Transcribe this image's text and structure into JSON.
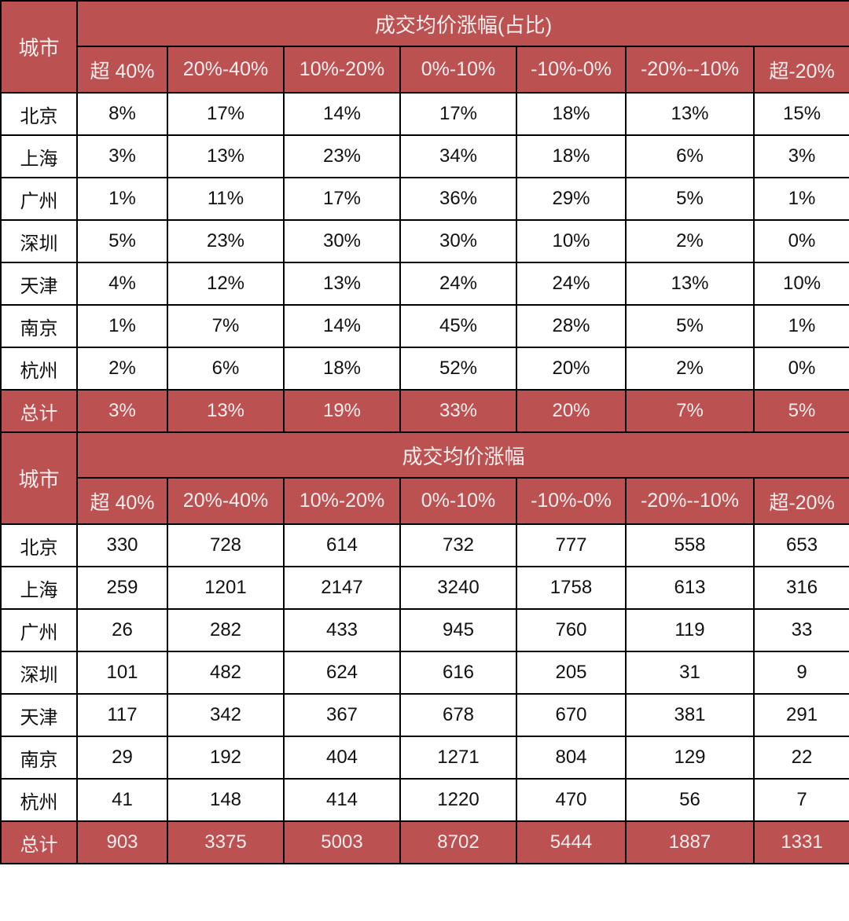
{
  "styles": {
    "header_bg": "#BC5152",
    "header_text": "#F9EDED",
    "body_text": "#111111",
    "border": "#000000"
  },
  "chart_data": [
    {
      "type": "table",
      "title": "成交均价涨幅(占比)",
      "corner_header": "城市",
      "columns": [
        "超 40%",
        "20%-40%",
        "10%-20%",
        "0%-10%",
        "-10%-0%",
        "-20%--10%",
        "超-20%"
      ],
      "rows": [
        {
          "label": "北京",
          "values": [
            "8%",
            "17%",
            "14%",
            "17%",
            "18%",
            "13%",
            "15%"
          ]
        },
        {
          "label": "上海",
          "values": [
            "3%",
            "13%",
            "23%",
            "34%",
            "18%",
            "6%",
            "3%"
          ]
        },
        {
          "label": "广州",
          "values": [
            "1%",
            "11%",
            "17%",
            "36%",
            "29%",
            "5%",
            "1%"
          ]
        },
        {
          "label": "深圳",
          "values": [
            "5%",
            "23%",
            "30%",
            "30%",
            "10%",
            "2%",
            "0%"
          ]
        },
        {
          "label": "天津",
          "values": [
            "4%",
            "12%",
            "13%",
            "24%",
            "24%",
            "13%",
            "10%"
          ]
        },
        {
          "label": "南京",
          "values": [
            "1%",
            "7%",
            "14%",
            "45%",
            "28%",
            "5%",
            "1%"
          ]
        },
        {
          "label": "杭州",
          "values": [
            "2%",
            "6%",
            "18%",
            "52%",
            "20%",
            "2%",
            "0%"
          ]
        },
        {
          "label": "总计",
          "values": [
            "3%",
            "13%",
            "19%",
            "33%",
            "20%",
            "7%",
            "5%"
          ],
          "is_total": true
        }
      ]
    },
    {
      "type": "table",
      "title": "成交均价涨幅",
      "corner_header": "城市",
      "columns": [
        "超 40%",
        "20%-40%",
        "10%-20%",
        "0%-10%",
        "-10%-0%",
        "-20%--10%",
        "超-20%"
      ],
      "rows": [
        {
          "label": "北京",
          "values": [
            "330",
            "728",
            "614",
            "732",
            "777",
            "558",
            "653"
          ]
        },
        {
          "label": "上海",
          "values": [
            "259",
            "1201",
            "2147",
            "3240",
            "1758",
            "613",
            "316"
          ]
        },
        {
          "label": "广州",
          "values": [
            "26",
            "282",
            "433",
            "945",
            "760",
            "119",
            "33"
          ]
        },
        {
          "label": "深圳",
          "values": [
            "101",
            "482",
            "624",
            "616",
            "205",
            "31",
            "9"
          ]
        },
        {
          "label": "天津",
          "values": [
            "117",
            "342",
            "367",
            "678",
            "670",
            "381",
            "291"
          ]
        },
        {
          "label": "南京",
          "values": [
            "29",
            "192",
            "404",
            "1271",
            "804",
            "129",
            "22"
          ]
        },
        {
          "label": "杭州",
          "values": [
            "41",
            "148",
            "414",
            "1220",
            "470",
            "56",
            "7"
          ]
        },
        {
          "label": "总计",
          "values": [
            "903",
            "3375",
            "5003",
            "8702",
            "5444",
            "1887",
            "1331"
          ],
          "is_total": true
        }
      ]
    }
  ]
}
